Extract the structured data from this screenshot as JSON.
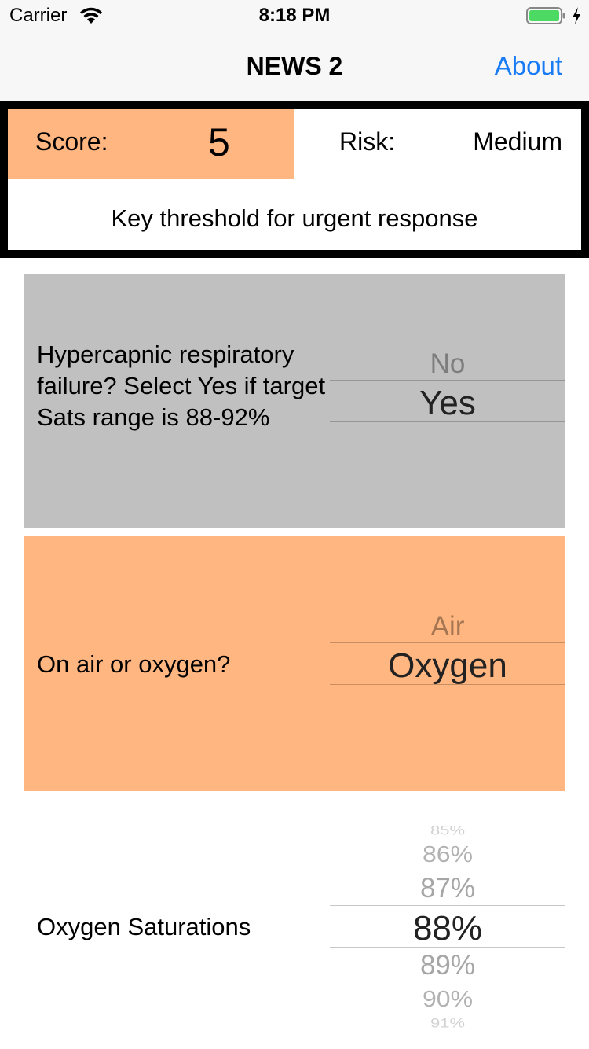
{
  "status_bar": {
    "carrier": "Carrier",
    "time": "8:18 PM",
    "battery_color": "#4cd964"
  },
  "nav": {
    "title": "NEWS 2",
    "about": "About",
    "accent_color": "#1a7cf5"
  },
  "score_panel": {
    "score_label": "Score:",
    "score_value": "5",
    "risk_label": "Risk:",
    "risk_value": "Medium",
    "threshold_message": "Key threshold for urgent response",
    "highlight_color": "#ffb680"
  },
  "rows": {
    "hypercapnic": {
      "question": "Hypercapnic respiratory failure? Select Yes if target Sats range is 88-92%",
      "options": [
        "No",
        "Yes"
      ],
      "selected": "Yes",
      "background": "#c0c0c0"
    },
    "air_oxygen": {
      "question": "On air or oxygen?",
      "options": [
        "Air",
        "Oxygen"
      ],
      "selected": "Oxygen",
      "background": "#ffb680"
    },
    "saturations": {
      "question": "Oxygen Saturations",
      "options": [
        "85%",
        "86%",
        "87%",
        "88%",
        "89%",
        "90%",
        "91%"
      ],
      "selected": "88%",
      "background": "#ffffff"
    }
  }
}
